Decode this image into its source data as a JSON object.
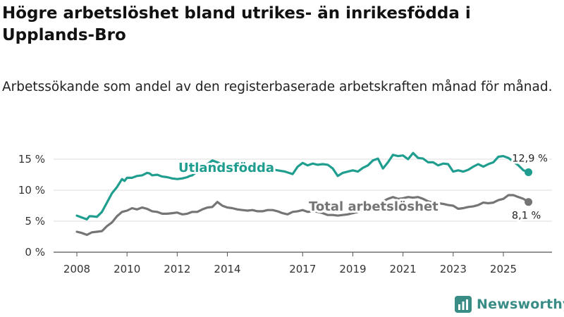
{
  "title": "Högre arbetslöshet bland utrikes- än inrikesfödda i Upplands-Bro",
  "subtitle": "Arbetssökande som andel av den registerbaserade arbetskraften månad för månad.",
  "brand": {
    "name": "Newsworthy",
    "color": "#3a8d86",
    "icon": "bar-chart-logo-icon"
  },
  "chart_data": {
    "type": "line",
    "ylim": [
      0,
      15
    ],
    "xlim": [
      2007.9,
      2026.2
    ],
    "y_ticks": [
      {
        "value": 0,
        "label": "0 %"
      },
      {
        "value": 5,
        "label": "5 %"
      },
      {
        "value": 10,
        "label": "10 %"
      },
      {
        "value": 15,
        "label": "15 %"
      }
    ],
    "x_ticks": [
      {
        "value": 2008,
        "label": "2008"
      },
      {
        "value": 2010,
        "label": "2010"
      },
      {
        "value": 2012,
        "label": "2012"
      },
      {
        "value": 2014,
        "label": "2014"
      },
      {
        "value": 2017,
        "label": "2017"
      },
      {
        "value": 2019,
        "label": "2019"
      },
      {
        "value": 2021,
        "label": "2021"
      },
      {
        "value": 2023,
        "label": "2023"
      },
      {
        "value": 2025,
        "label": "2025"
      }
    ],
    "grid": true,
    "series": [
      {
        "name": "Utlandsfödda",
        "color": "#1f9e8f",
        "end_label": "12,9 %",
        "x": [
          2008.0,
          2008.2,
          2008.4,
          2008.5,
          2008.6,
          2008.8,
          2009.0,
          2009.2,
          2009.4,
          2009.6,
          2009.8,
          2009.9,
          2010.0,
          2010.2,
          2010.4,
          2010.6,
          2010.8,
          2010.9,
          2011.0,
          2011.2,
          2011.4,
          2011.6,
          2011.8,
          2012.0,
          2012.2,
          2012.4,
          2012.5,
          2012.6,
          2013.4,
          2013.6,
          2014.0,
          2014.4,
          2014.8,
          2015.2,
          2015.6,
          2016.0,
          2016.3,
          2016.6,
          2016.8,
          2017.0,
          2017.2,
          2017.4,
          2017.6,
          2017.8,
          2018.0,
          2018.2,
          2018.4,
          2018.6,
          2018.8,
          2019.0,
          2019.2,
          2019.4,
          2019.6,
          2019.8,
          2020.0,
          2020.2,
          2020.4,
          2020.6,
          2020.8,
          2021.0,
          2021.2,
          2021.4,
          2021.6,
          2021.8,
          2022.0,
          2022.2,
          2022.4,
          2022.6,
          2022.8,
          2023.0,
          2023.2,
          2023.4,
          2023.6,
          2023.8,
          2024.0,
          2024.2,
          2024.4,
          2024.6,
          2024.8,
          2025.0,
          2025.2,
          2025.4,
          2025.6,
          2025.8,
          2026.0
        ],
        "values": [
          5.9,
          5.6,
          5.3,
          5.8,
          5.8,
          5.7,
          6.5,
          8.0,
          9.5,
          10.5,
          11.8,
          11.5,
          12.0,
          12.0,
          12.3,
          12.4,
          12.8,
          12.7,
          12.4,
          12.5,
          12.2,
          12.1,
          11.9,
          11.8,
          11.9,
          12.1,
          12.3,
          12.4,
          14.8,
          14.5,
          13.8,
          13.7,
          13.6,
          13.6,
          13.5,
          13.2,
          13.0,
          12.6,
          13.8,
          14.4,
          14.0,
          14.3,
          14.1,
          14.2,
          14.1,
          13.5,
          12.3,
          12.8,
          13.0,
          13.2,
          13.0,
          13.6,
          14.0,
          14.8,
          15.1,
          13.5,
          14.5,
          15.7,
          15.5,
          15.6,
          15.0,
          16.0,
          15.2,
          15.1,
          14.5,
          14.5,
          14.0,
          14.3,
          14.2,
          13.0,
          13.2,
          13.0,
          13.3,
          13.8,
          14.2,
          13.8,
          14.2,
          14.5,
          15.4,
          15.5,
          15.2,
          14.6,
          14.0,
          13.2,
          12.9
        ]
      },
      {
        "name": "Total arbetslöshet",
        "color": "#757575",
        "end_label": "8,1 %",
        "x": [
          2008.0,
          2008.2,
          2008.4,
          2008.6,
          2008.8,
          2009.0,
          2009.2,
          2009.4,
          2009.6,
          2009.8,
          2010.0,
          2010.2,
          2010.4,
          2010.6,
          2010.8,
          2011.0,
          2011.2,
          2011.4,
          2011.6,
          2011.8,
          2012.0,
          2012.2,
          2012.4,
          2012.6,
          2012.8,
          2013.0,
          2013.2,
          2013.4,
          2013.6,
          2013.8,
          2014.0,
          2014.2,
          2014.4,
          2014.6,
          2014.8,
          2015.0,
          2015.2,
          2015.4,
          2015.6,
          2015.8,
          2016.0,
          2016.2,
          2016.4,
          2016.6,
          2016.8,
          2017.0,
          2017.2,
          2017.4,
          2017.6,
          2017.8,
          2018.0,
          2018.2,
          2018.4,
          2018.6,
          2018.8,
          2019.0,
          2019.2,
          2019.4,
          2019.6,
          2019.8,
          2020.0,
          2020.2,
          2020.4,
          2020.6,
          2020.8,
          2021.0,
          2021.2,
          2021.4,
          2021.6,
          2021.8,
          2022.0,
          2022.2,
          2022.4,
          2022.6,
          2022.8,
          2023.0,
          2023.2,
          2023.4,
          2023.6,
          2023.8,
          2024.0,
          2024.2,
          2024.4,
          2024.6,
          2024.8,
          2025.0,
          2025.2,
          2025.4,
          2025.6,
          2025.8,
          2026.0
        ],
        "values": [
          3.3,
          3.1,
          2.8,
          3.2,
          3.3,
          3.4,
          4.2,
          4.8,
          5.8,
          6.5,
          6.7,
          7.1,
          6.9,
          7.2,
          7.0,
          6.6,
          6.5,
          6.2,
          6.2,
          6.3,
          6.4,
          6.1,
          6.2,
          6.5,
          6.5,
          6.9,
          7.2,
          7.3,
          8.1,
          7.5,
          7.2,
          7.1,
          6.9,
          6.8,
          6.7,
          6.8,
          6.6,
          6.6,
          6.8,
          6.8,
          6.6,
          6.3,
          6.1,
          6.5,
          6.6,
          6.8,
          6.5,
          6.6,
          6.5,
          6.3,
          6.0,
          6.0,
          5.9,
          6.0,
          6.1,
          6.3,
          6.5,
          6.8,
          7.0,
          7.2,
          7.5,
          8.2,
          8.6,
          8.9,
          8.6,
          8.7,
          8.9,
          8.8,
          8.9,
          8.6,
          8.2,
          8.0,
          7.9,
          7.8,
          7.6,
          7.5,
          7.0,
          7.1,
          7.3,
          7.4,
          7.6,
          8.0,
          7.9,
          8.0,
          8.4,
          8.6,
          9.2,
          9.2,
          8.9,
          8.6,
          8.1
        ]
      }
    ]
  }
}
